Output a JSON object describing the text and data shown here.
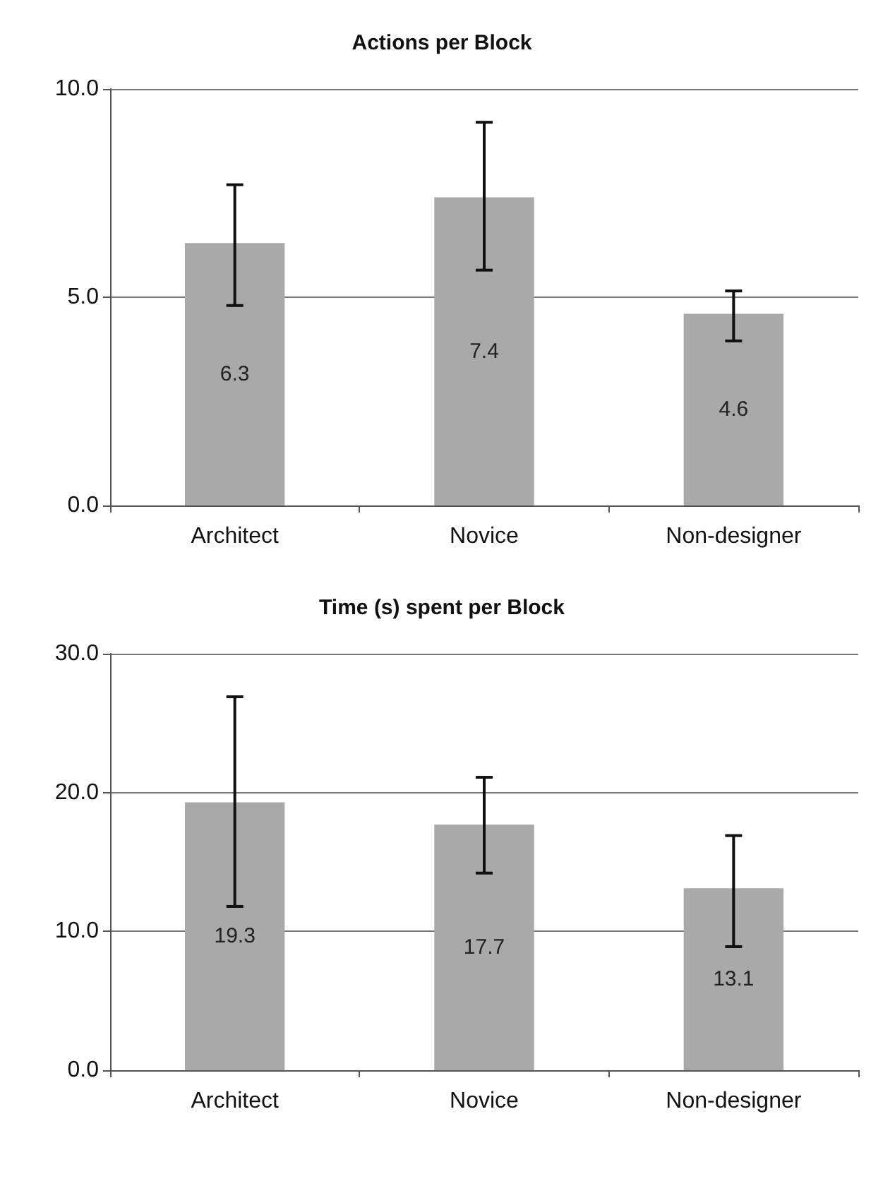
{
  "chart_data": [
    {
      "type": "bar",
      "title": "Actions per Block",
      "categories": [
        "Architect",
        "Novice",
        "Non-designer"
      ],
      "values": [
        6.3,
        7.4,
        4.6
      ],
      "color": "#a9a9a9",
      "errors": [
        [
          4.8,
          7.7
        ],
        [
          5.65,
          9.2
        ],
        [
          3.95,
          5.15
        ]
      ],
      "data_labels": true,
      "ylim": [
        0,
        10
      ],
      "yticks": [
        {
          "value": 0,
          "label": "0.0"
        },
        {
          "value": 5,
          "label": "5.0"
        },
        {
          "value": 10,
          "label": "10.0"
        }
      ],
      "grid": "y"
    },
    {
      "type": "bar",
      "title": "Time (s) spent per Block",
      "categories": [
        "Architect",
        "Novice",
        "Non-designer"
      ],
      "values": [
        19.3,
        17.7,
        13.1
      ],
      "color": "#a9a9a9",
      "errors": [
        [
          11.8,
          26.9
        ],
        [
          14.2,
          21.1
        ],
        [
          8.9,
          16.9
        ]
      ],
      "data_labels": true,
      "ylim": [
        0,
        30
      ],
      "yticks": [
        {
          "value": 0,
          "label": "0.0"
        },
        {
          "value": 10,
          "label": "10.0"
        },
        {
          "value": 20,
          "label": "20.0"
        },
        {
          "value": 30,
          "label": "30.0"
        }
      ],
      "grid": "y"
    }
  ]
}
